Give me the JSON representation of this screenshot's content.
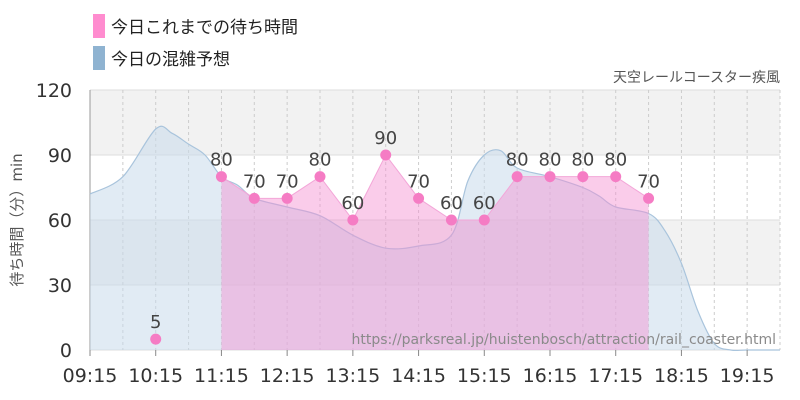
{
  "legend": [
    {
      "label": "今日これまでの待ち時間",
      "color": "#ff8ccf"
    },
    {
      "label": "今日の混雑予想",
      "color": "#8fb3d1"
    }
  ],
  "chart_data": {
    "type": "area",
    "subtitle": "天空レールコースター疾風",
    "ylabel": "待ち時間（分）min",
    "ylim": [
      0,
      120
    ],
    "yticks": [
      "0",
      "30",
      "60",
      "90",
      "120"
    ],
    "xlim": [
      "09:15",
      "19:45"
    ],
    "xticks": [
      "09:15",
      "10:15",
      "11:15",
      "12:15",
      "13:15",
      "14:15",
      "15:15",
      "16:15",
      "17:15",
      "18:15",
      "19:15"
    ],
    "grid": true,
    "series": [
      {
        "name": "今日これまでの待ち時間",
        "type": "points+area",
        "color": "#ff8ccf",
        "x": [
          "10:15",
          "11:15",
          "11:45",
          "12:15",
          "12:45",
          "13:15",
          "13:45",
          "14:15",
          "14:45",
          "15:15",
          "15:45",
          "16:15",
          "16:45",
          "17:15",
          "17:45"
        ],
        "y": [
          5,
          80,
          70,
          70,
          80,
          60,
          90,
          70,
          60,
          60,
          80,
          80,
          80,
          80,
          70
        ],
        "labels": [
          "5",
          "80",
          "70",
          "70",
          "80",
          "60",
          "90",
          "70",
          "60",
          "60",
          "80",
          "80",
          "80",
          "80",
          "70"
        ]
      },
      {
        "name": "今日の混雑予想",
        "type": "area",
        "color": "#8fb3d1",
        "x": [
          "09:15",
          "09:45",
          "10:15",
          "10:30",
          "10:45",
          "11:00",
          "11:15",
          "11:30",
          "11:45",
          "12:15",
          "12:45",
          "13:15",
          "13:45",
          "14:15",
          "14:45",
          "15:00",
          "15:15",
          "15:30",
          "15:45",
          "16:15",
          "16:45",
          "17:00",
          "17:15",
          "17:45",
          "18:00",
          "18:15",
          "18:30",
          "18:45",
          "19:00",
          "19:15",
          "19:45"
        ],
        "y": [
          72,
          80,
          102,
          100,
          95,
          90,
          80,
          76,
          70,
          66,
          62,
          53,
          47,
          48,
          53,
          78,
          90,
          92,
          84,
          80,
          75,
          71,
          66,
          63,
          55,
          40,
          18,
          3,
          0,
          0,
          0
        ]
      }
    ],
    "watermark": "https://parksreal.jp/huistenbosch/attraction/rail_coaster.html"
  }
}
